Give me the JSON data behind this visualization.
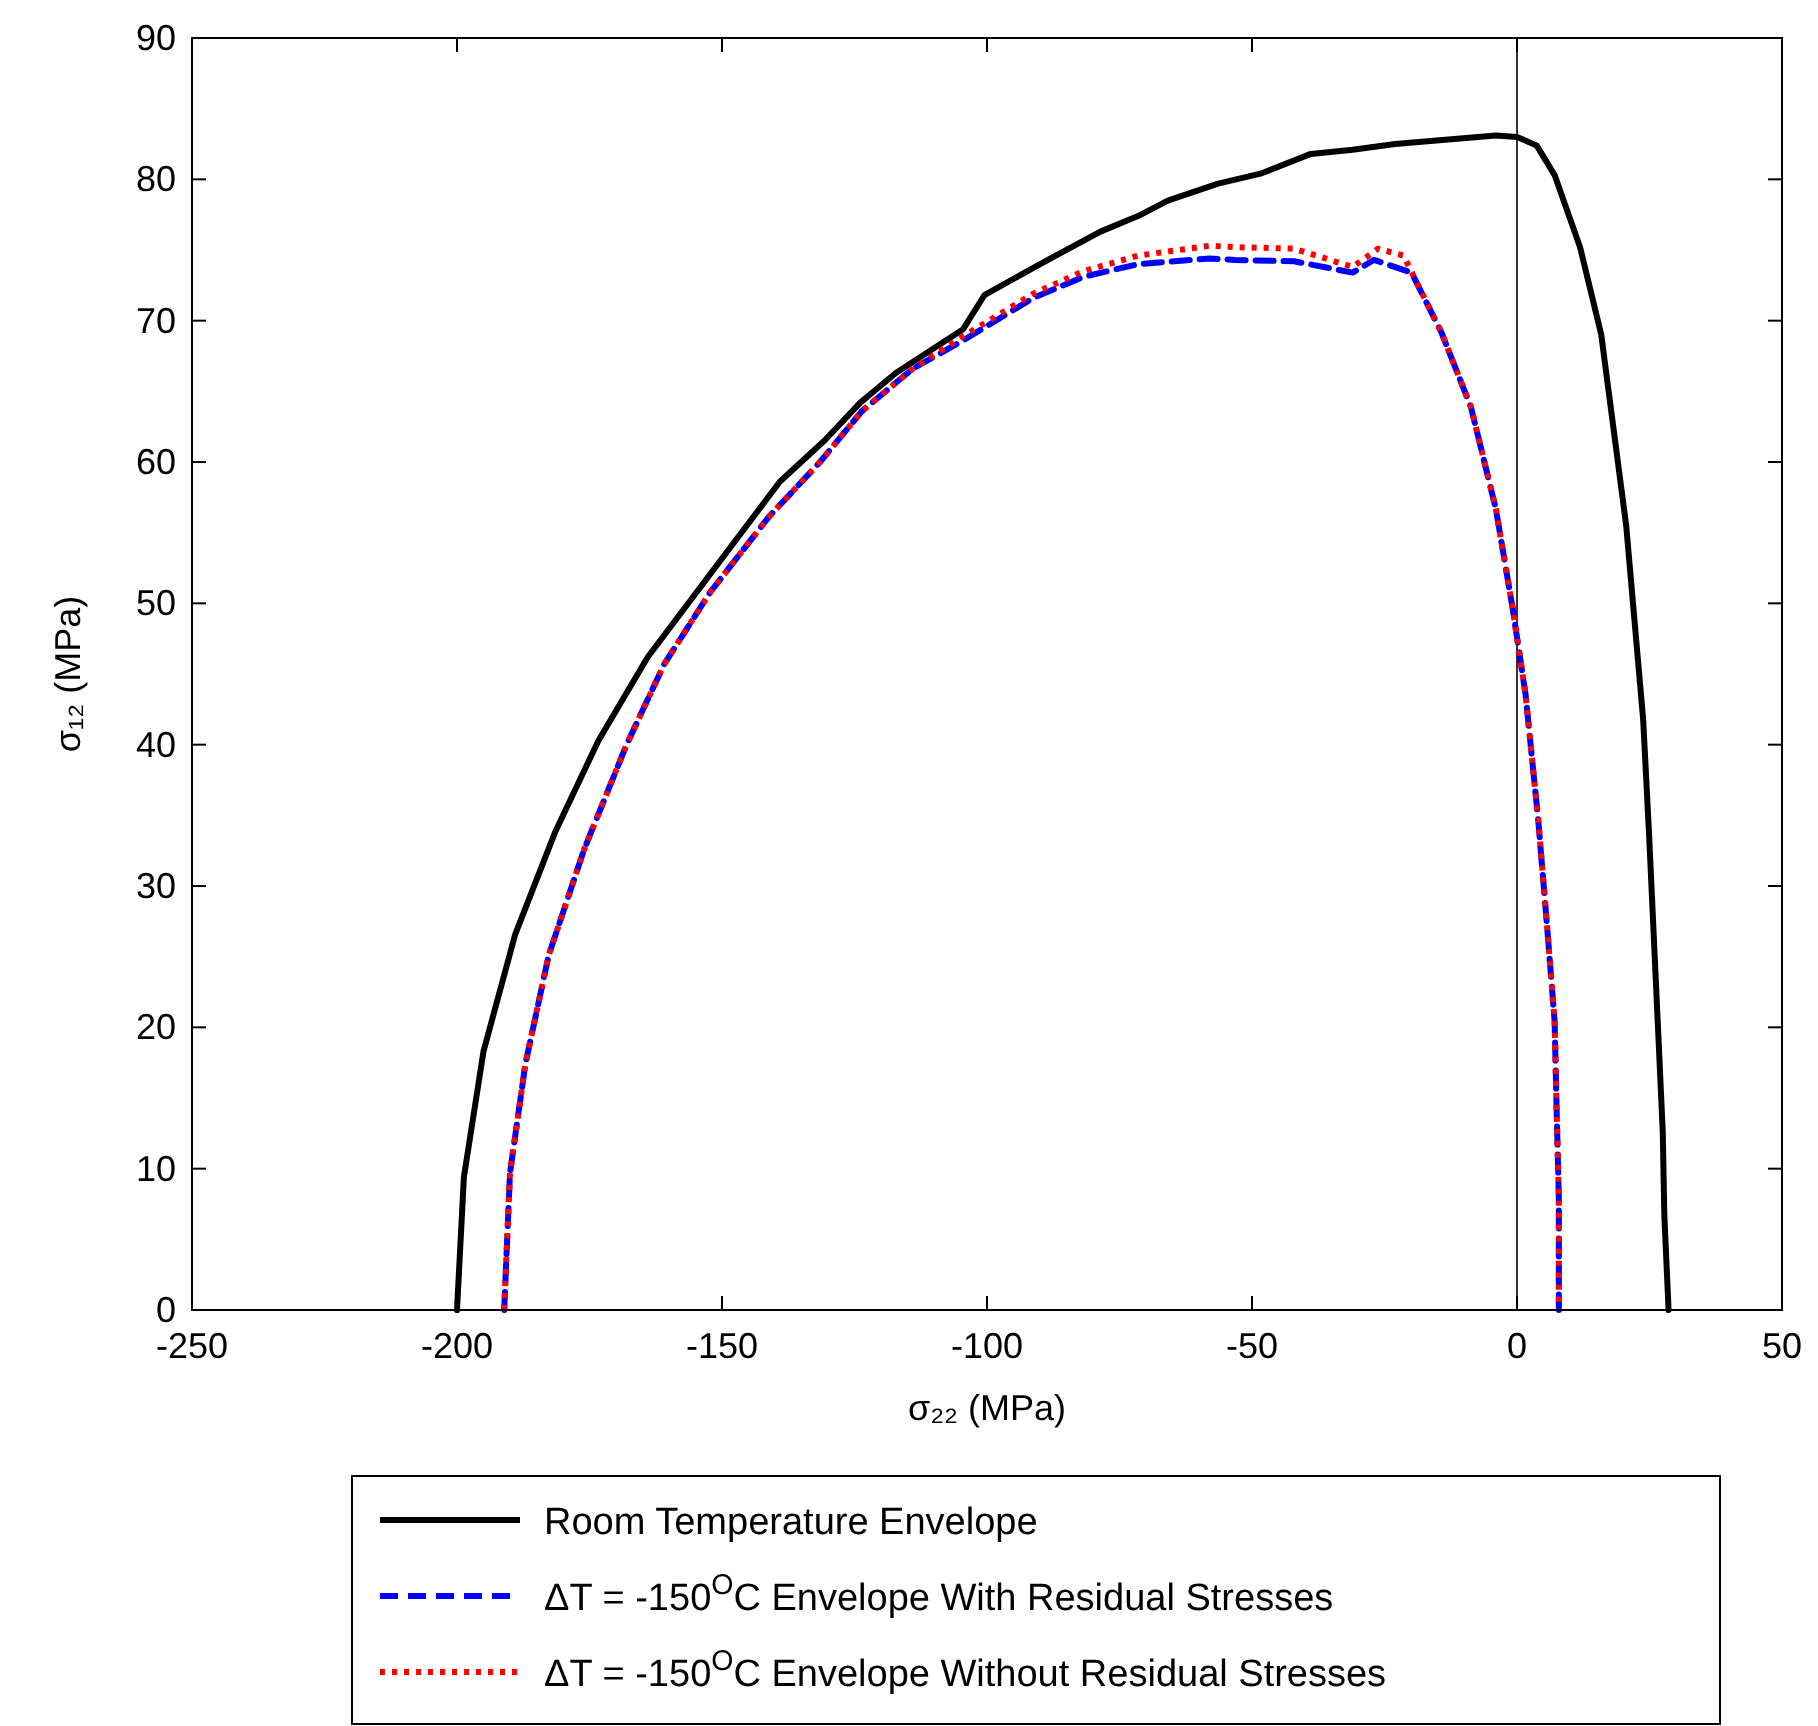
{
  "chart_data": {
    "type": "line",
    "xlabel": "σ₂₂ (MPa)",
    "ylabel": "σ₁₂ (MPa)",
    "xlim": [
      -250,
      50
    ],
    "ylim": [
      0,
      90
    ],
    "xticks": [
      -250,
      -200,
      -150,
      -100,
      -50,
      0,
      50
    ],
    "yticks": [
      0,
      10,
      20,
      30,
      40,
      50,
      60,
      70,
      80,
      90
    ],
    "grid": false,
    "legend": "bottom",
    "ref_lines": [
      {
        "axis": "x",
        "value": 0,
        "color": "#000000"
      }
    ],
    "series": [
      {
        "name": "Room Temperature Envelope",
        "color": "#000000",
        "line_style": "solid",
        "x": [
          -200,
          -198.7,
          -195,
          -189,
          -181.5,
          -173.3,
          -164,
          -139.1,
          -130.7,
          -123.9,
          -117.2,
          -104.5,
          -100.5,
          -90.5,
          -78.6,
          -71.5,
          -65.9,
          -56.4,
          -48.4,
          -38.9,
          -31,
          -23,
          -13.5,
          -4,
          0,
          3.7,
          7.1,
          11.9,
          15.9,
          20.6,
          23.8,
          24.9,
          25.9,
          26.7,
          27.5,
          27.8,
          28.6
        ],
        "values": [
          0,
          9.4,
          18.3,
          26.6,
          33.8,
          40.3,
          46.2,
          58.6,
          61.5,
          64.2,
          66.3,
          69.4,
          71.8,
          73.9,
          76.3,
          77.4,
          78.5,
          79.7,
          80.4,
          81.8,
          82.1,
          82.5,
          82.8,
          83.1,
          83,
          82.4,
          80.3,
          75.2,
          69,
          55.5,
          41.8,
          33.8,
          25.7,
          19.2,
          12.6,
          6.7,
          0
        ]
      },
      {
        "name": "ΔT = -150$^{O}$C Envelope With Residual Stresses",
        "color": "#0000ff",
        "line_style": "dashed",
        "x": [
          -191.1,
          -190,
          -187.1,
          -182.7,
          -176,
          -168,
          -160.9,
          -152.2,
          -141.2,
          -131.5,
          -123.6,
          -114,
          -104.5,
          -91.3,
          -81.8,
          -71.5,
          -58,
          -53.2,
          -42.1,
          -31,
          -27,
          -19.9,
          -14.3,
          -8.7,
          -4,
          -0.8,
          1.6,
          4,
          5.6,
          7.1,
          7.5,
          7.9,
          7.9
        ],
        "values": [
          0,
          9.7,
          17.4,
          25.1,
          32.6,
          40,
          45.7,
          50.8,
          56.1,
          60,
          63.6,
          66.6,
          68.6,
          71.6,
          73.1,
          74,
          74.4,
          74.3,
          74.2,
          73.4,
          74.3,
          73.4,
          69.2,
          63.9,
          56.7,
          49.6,
          43.6,
          34.7,
          27.5,
          20.4,
          13.8,
          7.9,
          0
        ]
      },
      {
        "name": "ΔT = -150$^{O}$C Envelope Without Residual Stresses",
        "color": "#ff0000",
        "line_style": "dotted",
        "x": [
          -191.1,
          -190,
          -187.1,
          -182.7,
          -176,
          -168,
          -160.9,
          -152.2,
          -141.2,
          -131.5,
          -123.6,
          -114,
          -104.5,
          -91.3,
          -81.8,
          -71.5,
          -58,
          -53.2,
          -42.1,
          -31,
          -26.2,
          -21.4,
          -14.3,
          -8.7,
          -4,
          -0.8,
          1.6,
          4,
          5.6,
          7.1,
          7.5,
          7.9,
          7.9
        ],
        "values": [
          0,
          9.7,
          17.4,
          25.1,
          32.6,
          40,
          45.7,
          50.8,
          56.1,
          60,
          63.6,
          66.6,
          68.9,
          71.9,
          73.5,
          74.6,
          75.3,
          75.2,
          75.1,
          73.8,
          75.1,
          74.6,
          69.2,
          63.9,
          56.7,
          49.6,
          43.6,
          34.7,
          27.5,
          20.4,
          13.8,
          7.9,
          0
        ]
      }
    ]
  }
}
